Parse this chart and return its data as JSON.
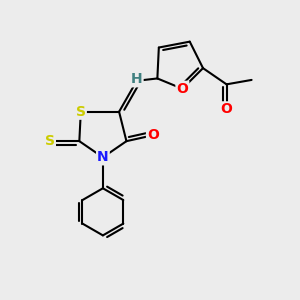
{
  "bg_color": "#ececec",
  "atom_colors": {
    "S": "#cccc00",
    "N": "#1a1aff",
    "O": "#ff0000",
    "C": "#000000",
    "H": "#408080"
  },
  "bond_color": "#000000"
}
